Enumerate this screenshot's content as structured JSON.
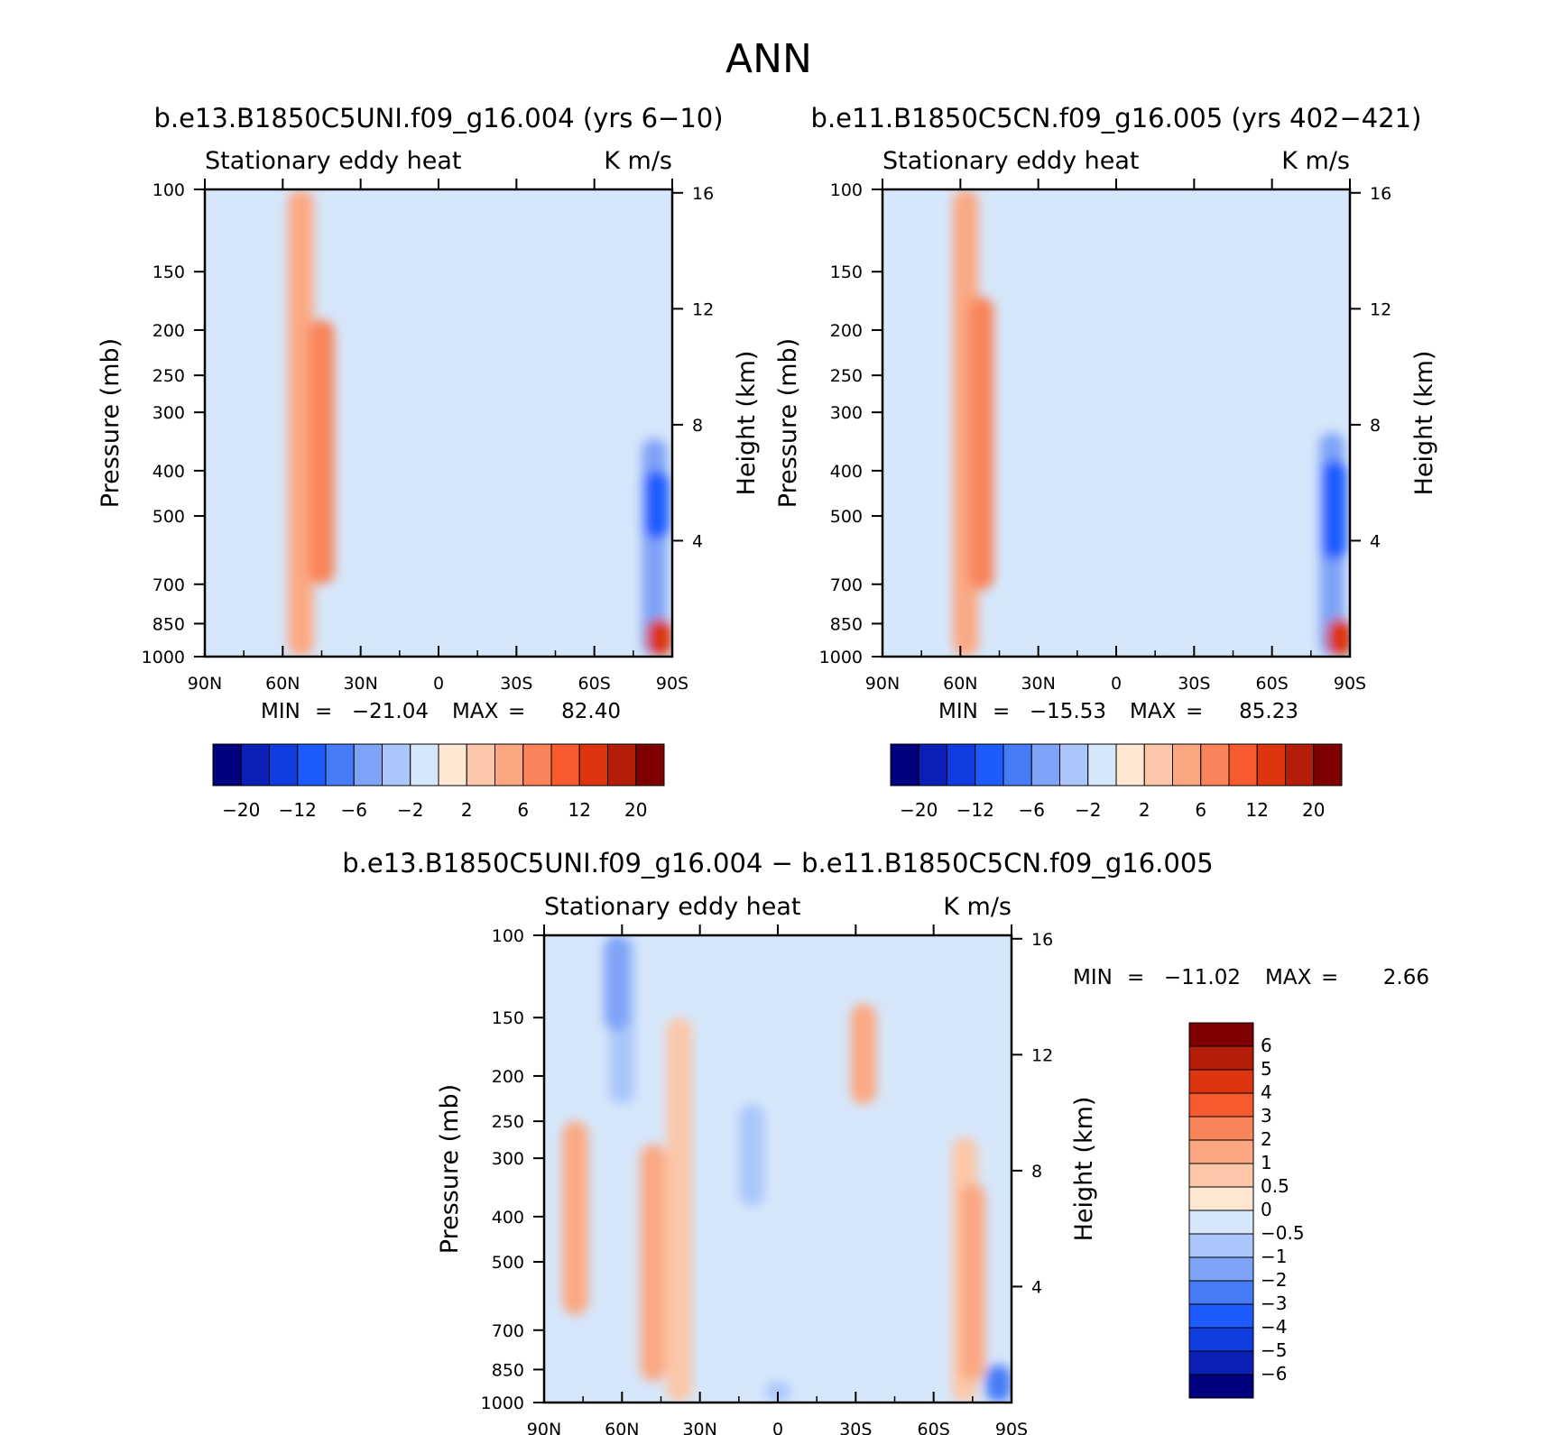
{
  "figure": {
    "title": "ANN",
    "subtitles": [
      "b.e13.B1850C5UNI.f09_g16.004 (yrs 6−10)",
      "b.e11.B1850C5CN.f09_g16.005 (yrs 402−421)",
      "b.e13.B1850C5UNI.f09_g16.004 − b.e11.B1850C5CN.f09_g16.005"
    ]
  },
  "palette": {
    "main": [
      "#00007f",
      "#0a1fb5",
      "#0f3de0",
      "#1e5bff",
      "#467cf6",
      "#7ea3f7",
      "#aac6fb",
      "#d6e7fb",
      "#fde7d3",
      "#fcc7a8",
      "#fba882",
      "#f9845a",
      "#f65a2e",
      "#dc3510",
      "#b41d08",
      "#7f0000"
    ],
    "diff": [
      "#00007f",
      "#0a1fb5",
      "#0f3de0",
      "#1e5bff",
      "#467cf6",
      "#7ea3f7",
      "#aac6fb",
      "#d6e7fb",
      "#fde7d3",
      "#fcc7a8",
      "#fba882",
      "#f9845a",
      "#f65a2e",
      "#dc3510",
      "#b41d08",
      "#7f0000"
    ]
  },
  "chart_data": [
    {
      "type": "heatmap",
      "title": "Stationary eddy heat",
      "units": "K m/s",
      "xlabel": "",
      "ylabel": "Pressure (mb)",
      "ylabel_right": "Height (km)",
      "x_ticks": [
        "90N",
        "60N",
        "30N",
        "0",
        "30S",
        "60S",
        "90S"
      ],
      "y_ticks": [
        100,
        150,
        200,
        250,
        300,
        400,
        500,
        700,
        850,
        1000
      ],
      "y_ticks_right": [
        16,
        12,
        8,
        4
      ],
      "ylim": [
        1000,
        100
      ],
      "xlim": [
        "90N",
        "90S"
      ],
      "stats": {
        "min_label": "MIN",
        "min": "−21.04",
        "max_label": "MAX",
        "max": "82.40"
      },
      "colorbar": {
        "orientation": "horizontal",
        "labels": [
          "−20",
          "−12",
          "−6",
          "−2",
          "2",
          "6",
          "12",
          "20"
        ]
      },
      "features": [
        {
          "lat": 53,
          "pmin": 100,
          "pmax": 1000,
          "value": 4
        },
        {
          "lat": 45,
          "pmin": 190,
          "pmax": 700,
          "value": 6
        },
        {
          "lat": 73,
          "pmin": 290,
          "pmax": 560,
          "value": -2
        },
        {
          "lat": -72,
          "pmin": 100,
          "pmax": 330,
          "value": -2
        },
        {
          "lat": -82,
          "pmin": 240,
          "pmax": 1000,
          "value": -2
        },
        {
          "lat": -83,
          "pmin": 340,
          "pmax": 1000,
          "value": -6
        },
        {
          "lat": -84,
          "pmin": 400,
          "pmax": 560,
          "value": -12
        },
        {
          "lat": -85,
          "pmin": 830,
          "pmax": 1000,
          "value": 12
        },
        {
          "lat": 0,
          "pmin": 850,
          "pmax": 1000,
          "value": -2
        }
      ]
    },
    {
      "type": "heatmap",
      "title": "Stationary eddy heat",
      "units": "K m/s",
      "xlabel": "",
      "ylabel": "Pressure (mb)",
      "ylabel_right": "Height (km)",
      "x_ticks": [
        "90N",
        "60N",
        "30N",
        "0",
        "30S",
        "60S",
        "90S"
      ],
      "y_ticks": [
        100,
        150,
        200,
        250,
        300,
        400,
        500,
        700,
        850,
        1000
      ],
      "y_ticks_right": [
        16,
        12,
        8,
        4
      ],
      "ylim": [
        1000,
        100
      ],
      "xlim": [
        "90N",
        "90S"
      ],
      "stats": {
        "min_label": "MIN",
        "min": "−15.53",
        "max_label": "MAX",
        "max": "85.23"
      },
      "colorbar": {
        "orientation": "horizontal",
        "labels": [
          "−20",
          "−12",
          "−6",
          "−2",
          "2",
          "6",
          "12",
          "20"
        ]
      },
      "features": [
        {
          "lat": 58,
          "pmin": 100,
          "pmax": 1000,
          "value": 4
        },
        {
          "lat": 52,
          "pmin": 170,
          "pmax": 720,
          "value": 6
        },
        {
          "lat": 75,
          "pmin": 280,
          "pmax": 600,
          "value": -2
        },
        {
          "lat": -72,
          "pmin": 100,
          "pmax": 320,
          "value": -2
        },
        {
          "lat": -82,
          "pmin": 230,
          "pmax": 1000,
          "value": -2
        },
        {
          "lat": -83,
          "pmin": 330,
          "pmax": 1000,
          "value": -6
        },
        {
          "lat": -84,
          "pmin": 380,
          "pmax": 620,
          "value": -12
        },
        {
          "lat": -86,
          "pmin": 830,
          "pmax": 1000,
          "value": 12
        },
        {
          "lat": -20,
          "pmin": 880,
          "pmax": 1000,
          "value": -2
        }
      ]
    },
    {
      "type": "heatmap",
      "title": "Stationary eddy heat",
      "units": "K m/s",
      "xlabel": "",
      "ylabel": "Pressure (mb)",
      "ylabel_right": "Height (km)",
      "x_ticks": [
        "90N",
        "60N",
        "30N",
        "0",
        "30S",
        "60S",
        "90S"
      ],
      "y_ticks": [
        100,
        150,
        200,
        250,
        300,
        400,
        500,
        700,
        850,
        1000
      ],
      "y_ticks_right": [
        16,
        12,
        8,
        4
      ],
      "ylim": [
        1000,
        100
      ],
      "xlim": [
        "90N",
        "90S"
      ],
      "stats": {
        "min_label": "MIN",
        "min": "−11.02",
        "max_label": "MAX",
        "max": "2.66"
      },
      "colorbar": {
        "orientation": "vertical",
        "labels": [
          "6",
          "5",
          "4",
          "3",
          "2",
          "1",
          "0.5",
          "0",
          "−0.5",
          "−1",
          "−2",
          "−3",
          "−4",
          "−5",
          "−6"
        ]
      },
      "features": [
        {
          "lat": 60,
          "pmin": 100,
          "pmax": 230,
          "value": -1
        },
        {
          "lat": 62,
          "pmin": 100,
          "pmax": 160,
          "value": -2
        },
        {
          "lat": 78,
          "pmin": 250,
          "pmax": 650,
          "value": 1
        },
        {
          "lat": 38,
          "pmin": 150,
          "pmax": 1000,
          "value": 0.5
        },
        {
          "lat": 48,
          "pmin": 280,
          "pmax": 900,
          "value": 1
        },
        {
          "lat": 10,
          "pmin": 230,
          "pmax": 380,
          "value": -1
        },
        {
          "lat": -33,
          "pmin": 140,
          "pmax": 230,
          "value": 1
        },
        {
          "lat": -72,
          "pmin": 270,
          "pmax": 1000,
          "value": 0.5
        },
        {
          "lat": -75,
          "pmin": 340,
          "pmax": 900,
          "value": 1
        },
        {
          "lat": -85,
          "pmin": 830,
          "pmax": 1000,
          "value": -3
        },
        {
          "lat": 0,
          "pmin": 900,
          "pmax": 1000,
          "value": -1
        }
      ]
    }
  ]
}
